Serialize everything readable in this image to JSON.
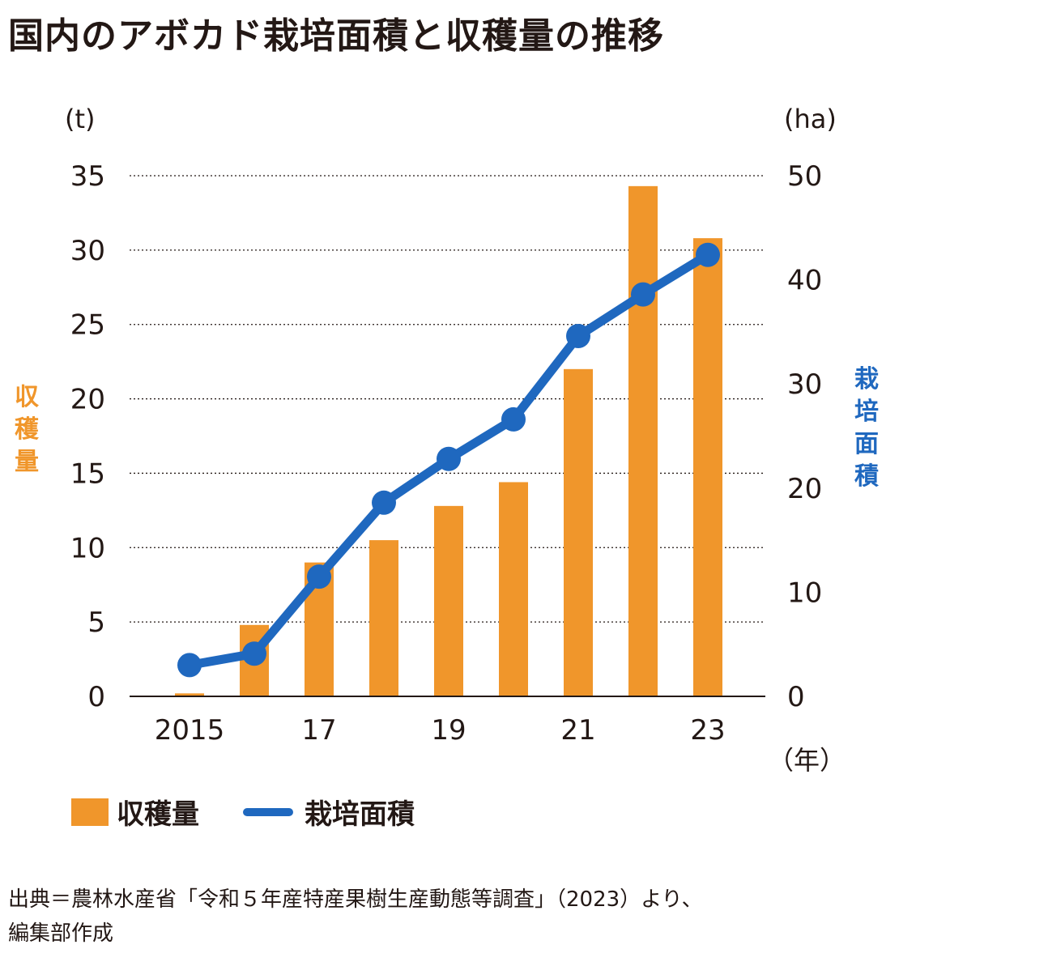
{
  "title": "国内のアボカド栽培面積と収穫量の推移",
  "source": "出典＝農林水産省「令和５年産特産果樹生産動態等調査」（2023）より、\n編集部作成",
  "colors": {
    "bar": "#f0962b",
    "line": "#1f68bf",
    "text": "#231815",
    "grid": "#231815"
  },
  "legend": {
    "bar_label": "収穫量",
    "line_label": "栽培面積"
  },
  "chart_data": {
    "type": "bar",
    "categories": [
      "2015",
      "",
      "17",
      "",
      "19",
      "",
      "21",
      "",
      "23"
    ],
    "x_years": [
      2015,
      2016,
      2017,
      2018,
      2019,
      2020,
      2021,
      2022,
      2023
    ],
    "xlabel_unit": "（年）",
    "series": [
      {
        "name": "収穫量",
        "type": "bar",
        "axis": "left",
        "values": [
          0.2,
          4.8,
          9.0,
          10.5,
          12.8,
          14.4,
          22.0,
          34.3,
          30.8
        ]
      },
      {
        "name": "栽培面積",
        "type": "line",
        "axis": "right",
        "values": [
          3.0,
          4.1,
          11.5,
          18.6,
          22.8,
          26.6,
          34.6,
          38.6,
          42.4
        ]
      }
    ],
    "left_axis": {
      "label": "収穫量",
      "unit": "(t)",
      "ylim": [
        0,
        35
      ],
      "ticks": [
        0,
        5,
        10,
        15,
        20,
        25,
        30,
        35
      ]
    },
    "right_axis": {
      "label": "栽培面積",
      "unit": "(ha)",
      "ylim": [
        0,
        50
      ],
      "ticks": [
        0,
        10,
        20,
        30,
        40,
        50
      ]
    },
    "grid": "dotted horizontal at left ticks",
    "legend_position": "bottom-left"
  }
}
